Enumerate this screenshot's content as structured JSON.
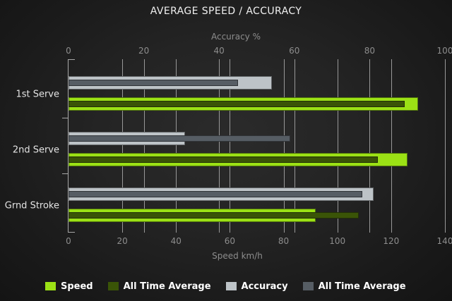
{
  "title": "AVERAGE SPEED / ACCURACY",
  "chart_data": {
    "type": "bar",
    "orientation": "horizontal",
    "grid": true,
    "legend_position": "bottom",
    "categories": [
      "1st Serve",
      "2nd Serve",
      "Grnd Stroke"
    ],
    "series": [
      {
        "name": "Speed",
        "axis": "bottom",
        "color": "#9be115",
        "values": [
          130,
          126,
          92
        ]
      },
      {
        "name": "All Time Average",
        "axis": "bottom",
        "color": "#3a5407",
        "values": [
          125,
          115,
          108
        ]
      },
      {
        "name": "Accuracy",
        "axis": "top",
        "color": "#bdc3c7",
        "values": [
          54,
          31,
          81
        ]
      },
      {
        "name": "All Time Average",
        "axis": "top",
        "color": "#565d64",
        "values": [
          45,
          59,
          78
        ]
      }
    ],
    "axes": {
      "top": {
        "label": "Accuracy %",
        "min": 0,
        "max": 100,
        "ticks": [
          0,
          20,
          40,
          60,
          80,
          100
        ]
      },
      "bottom": {
        "label": "Speed km/h",
        "min": 0,
        "max": 140,
        "ticks": [
          0,
          20,
          40,
          60,
          80,
          100,
          120,
          140
        ]
      }
    },
    "legend": [
      {
        "label": "Speed",
        "color": "#9be115"
      },
      {
        "label": "All Time Average",
        "color": "#3a5407"
      },
      {
        "label": "Accuracy",
        "color": "#bdc3c7"
      },
      {
        "label": "All Time Average",
        "color": "#565d64"
      }
    ]
  },
  "colors": {
    "background_center": "#2b2b2b",
    "background_edge": "#141414",
    "gridline": "#989898",
    "axis_text": "#8d8d8d",
    "title_text": "#f0f0f0",
    "category_text": "#e4e4e4",
    "legend_text": "#ffffff"
  }
}
